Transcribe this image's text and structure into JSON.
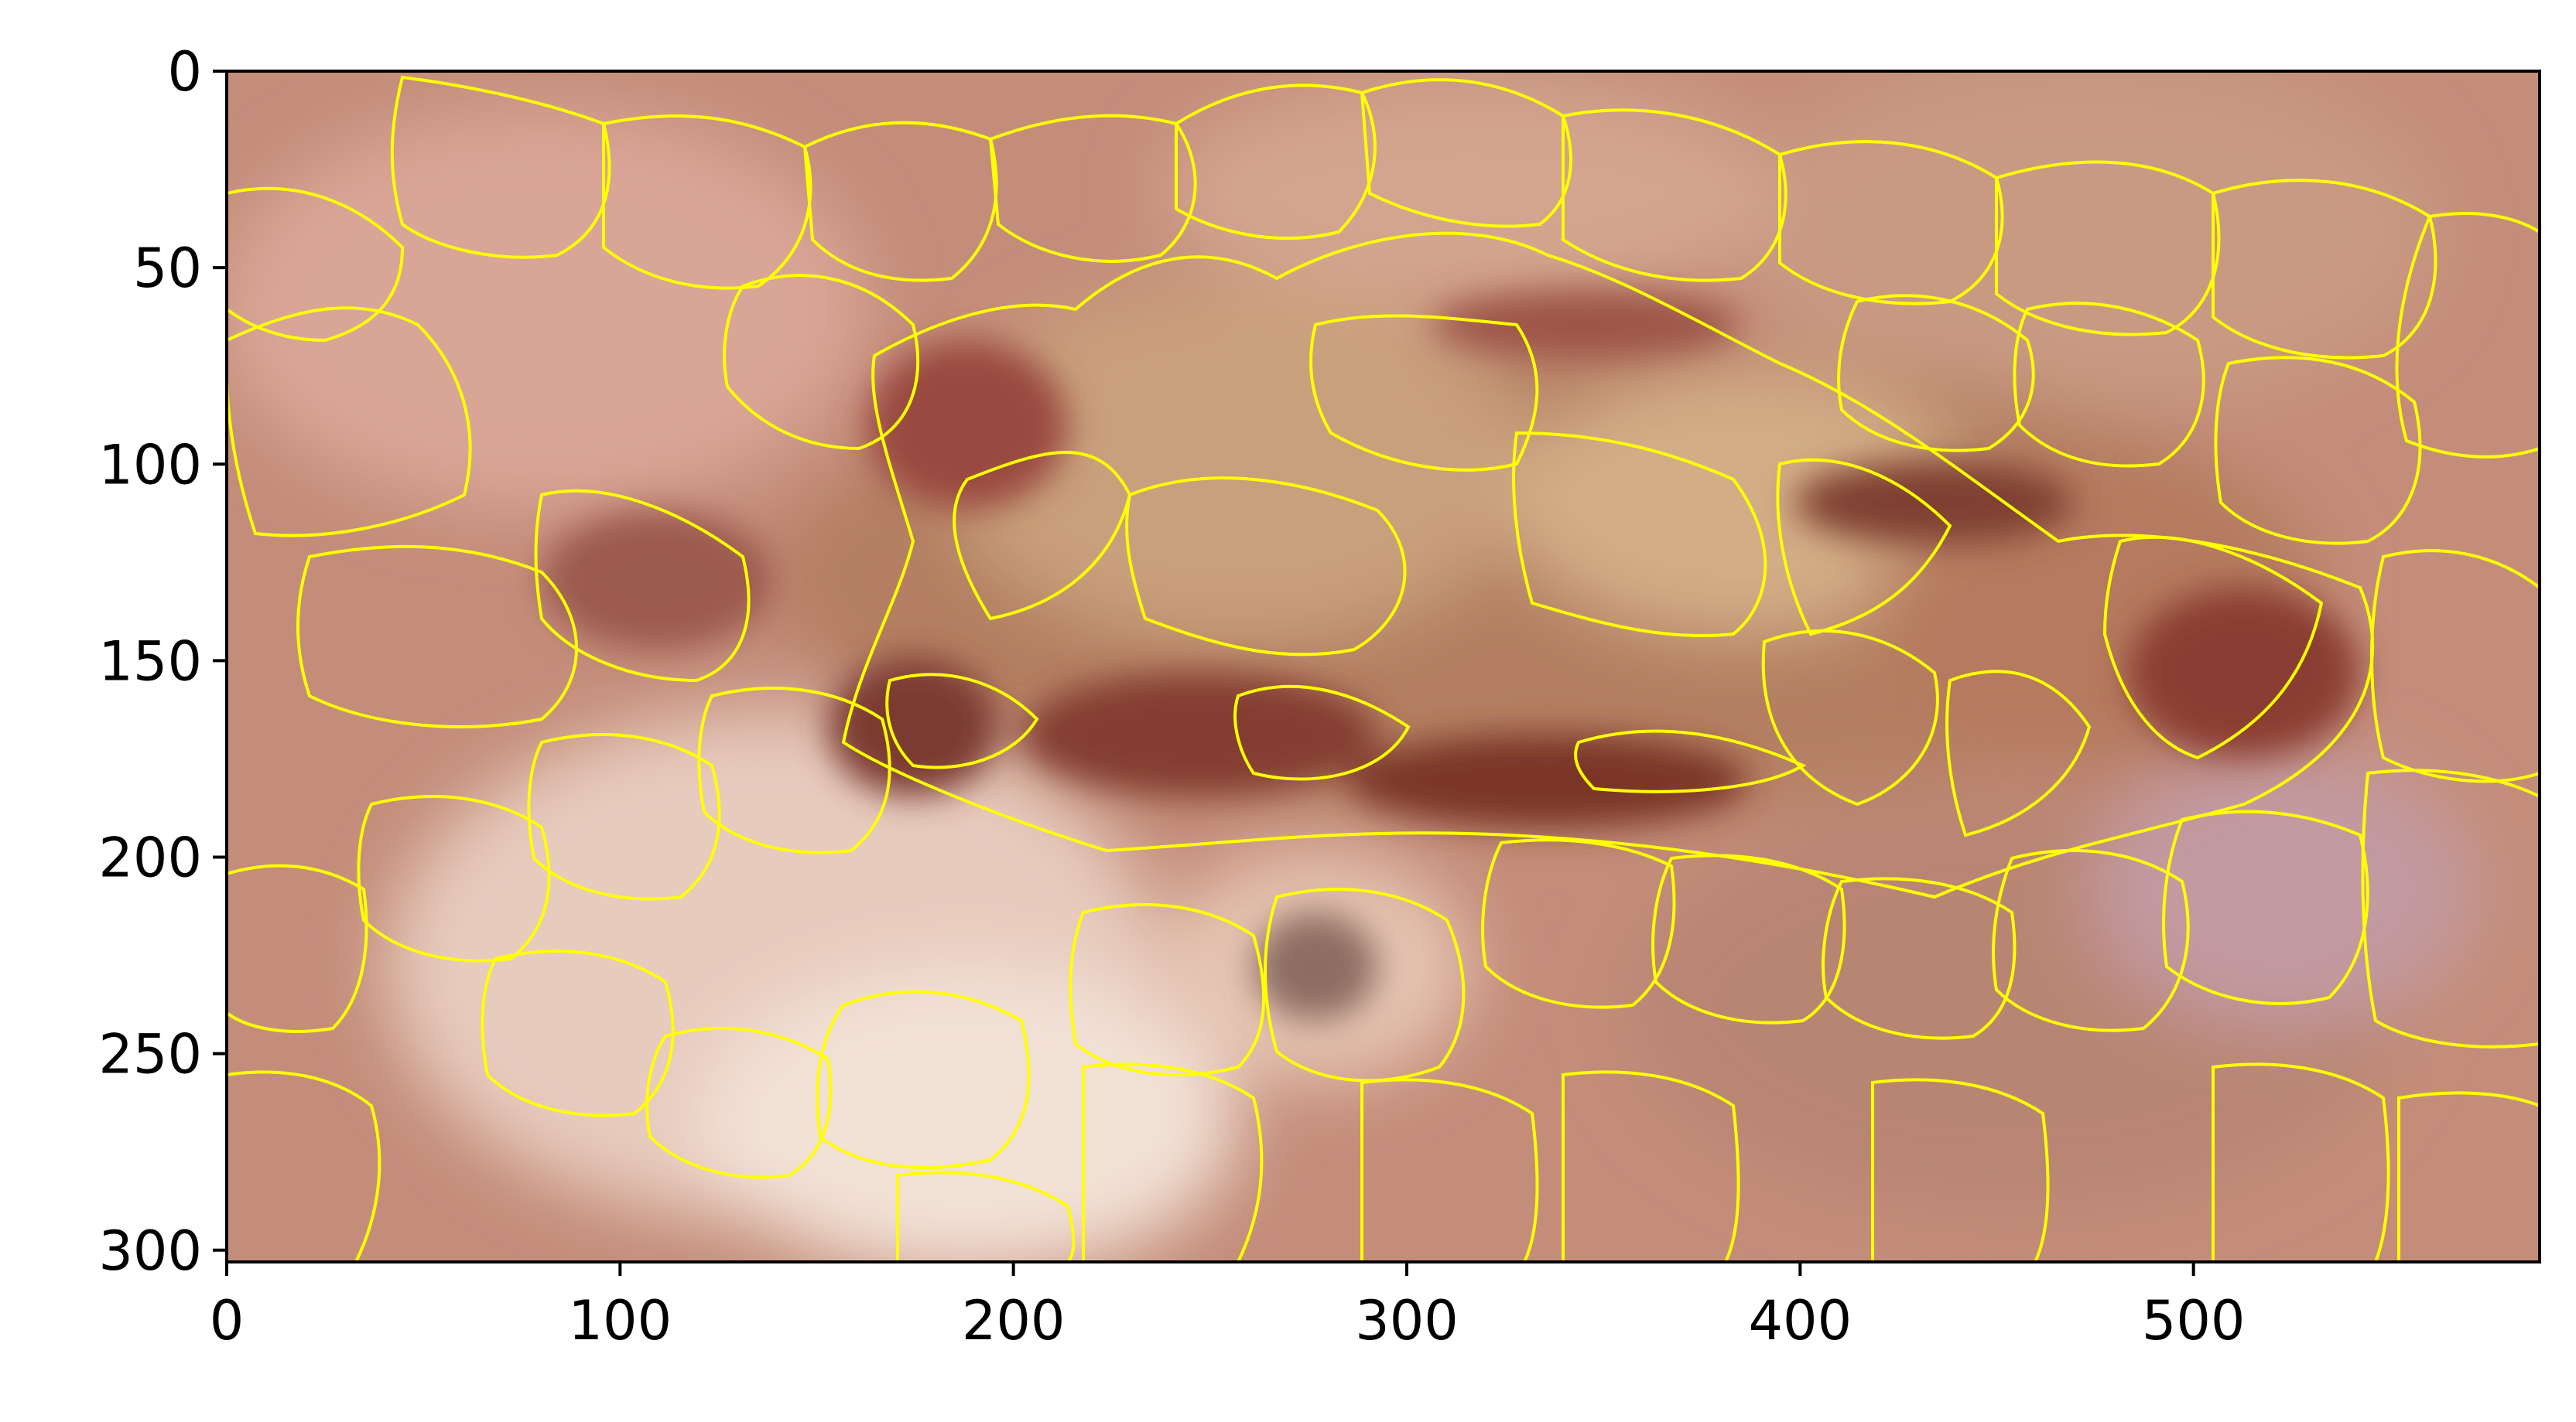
{
  "image": {
    "description_kind": "dermoscopy lesion image with superpixel segmentation boundaries",
    "boundary_color": "#ffff00",
    "background_color": "#c48d7a",
    "lesion_color": "#8a4a3c"
  },
  "axes": {
    "x_range": [
      0,
      588
    ],
    "y_range": [
      303,
      0
    ],
    "x_ticks": [
      0,
      100,
      200,
      300,
      400,
      500
    ],
    "y_ticks": [
      0,
      50,
      100,
      150,
      200,
      250,
      300
    ],
    "x_tick_labels": [
      "0",
      "100",
      "200",
      "300",
      "400",
      "500"
    ],
    "y_tick_labels": [
      "0",
      "50",
      "100",
      "150",
      "200",
      "250",
      "300"
    ]
  }
}
